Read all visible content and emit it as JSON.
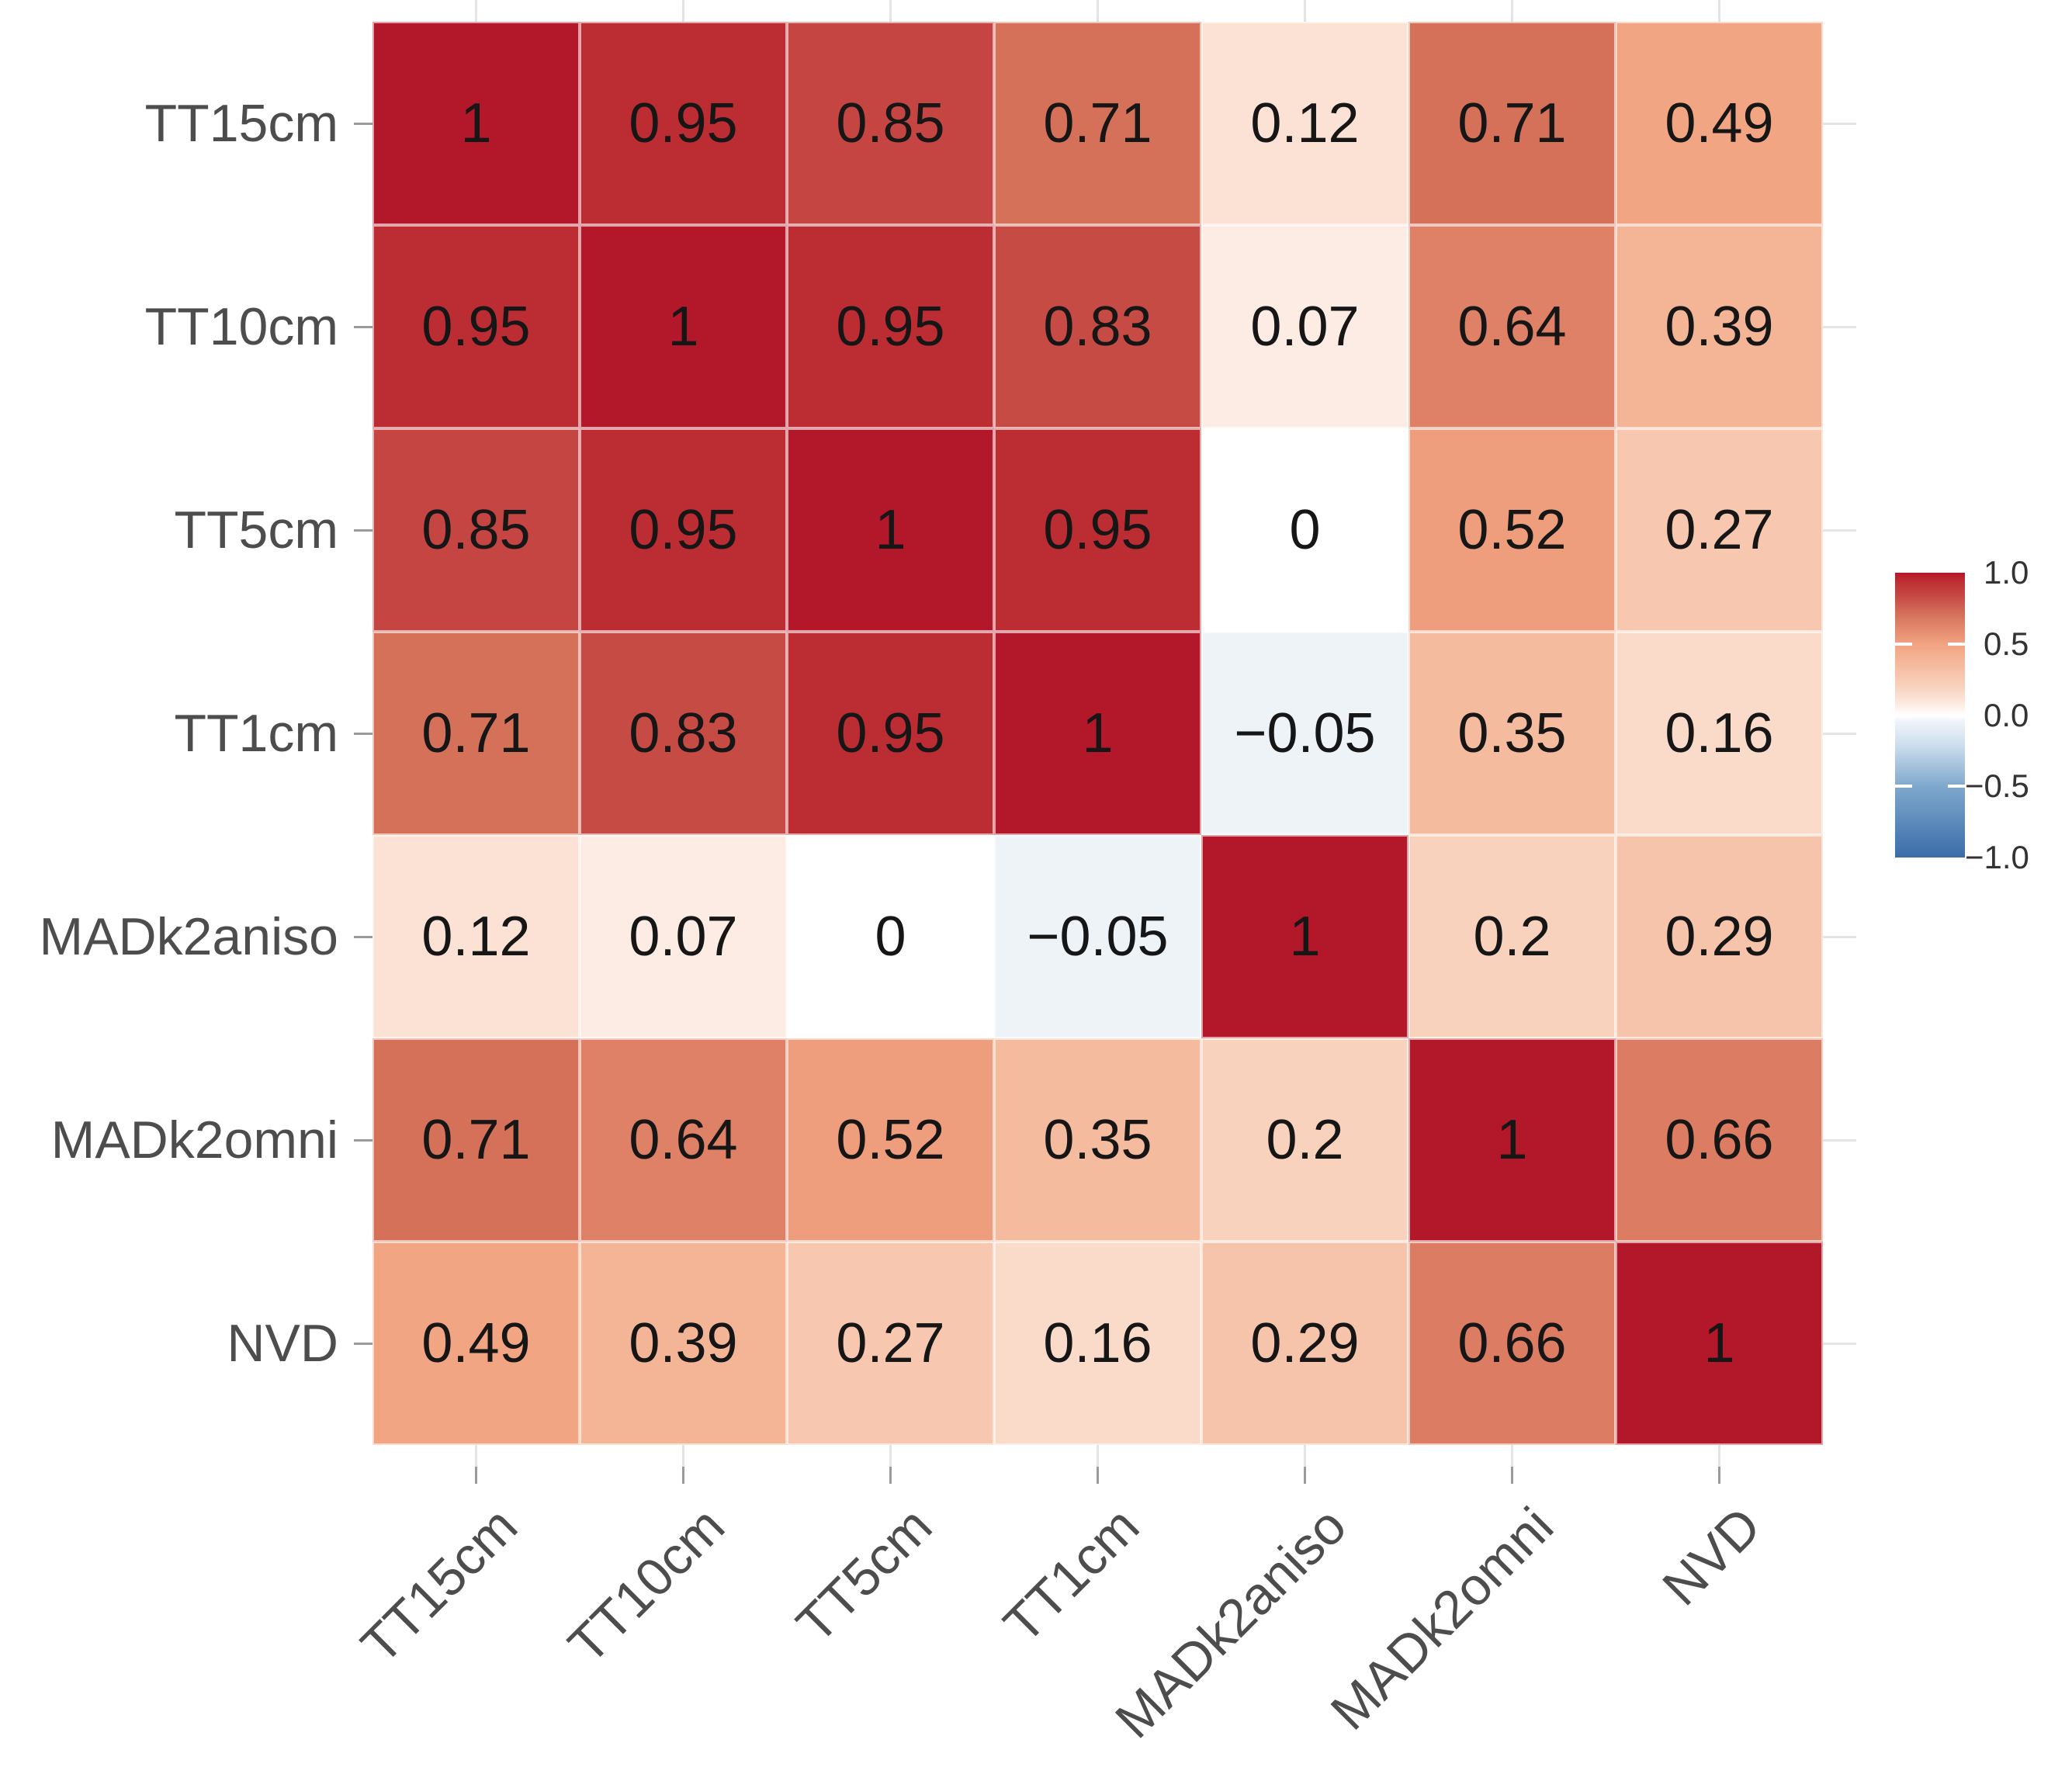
{
  "figure": {
    "background": "#ffffff"
  },
  "chart_data": {
    "type": "heatmap",
    "title": "",
    "x_categories": [
      "TT15cm",
      "TT10cm",
      "TT5cm",
      "TT1cm",
      "MADk2aniso",
      "MADk2omni",
      "NVD"
    ],
    "y_categories": [
      "TT15cm",
      "TT10cm",
      "TT5cm",
      "TT1cm",
      "MADk2aniso",
      "MADk2omni",
      "NVD"
    ],
    "matrix": [
      [
        1,
        0.95,
        0.85,
        0.71,
        0.12,
        0.71,
        0.49
      ],
      [
        0.95,
        1,
        0.95,
        0.83,
        0.07,
        0.64,
        0.39
      ],
      [
        0.85,
        0.95,
        1,
        0.95,
        0,
        0.52,
        0.27
      ],
      [
        0.71,
        0.83,
        0.95,
        1,
        -0.05,
        0.35,
        0.16
      ],
      [
        0.12,
        0.07,
        0,
        -0.05,
        1,
        0.2,
        0.29
      ],
      [
        0.71,
        0.64,
        0.52,
        0.35,
        0.2,
        1,
        0.66
      ],
      [
        0.49,
        0.39,
        0.27,
        0.16,
        0.29,
        0.66,
        1
      ]
    ],
    "cell_labels": [
      [
        "1",
        "0.95",
        "0.85",
        "0.71",
        "0.12",
        "0.71",
        "0.49"
      ],
      [
        "0.95",
        "1",
        "0.95",
        "0.83",
        "0.07",
        "0.64",
        "0.39"
      ],
      [
        "0.85",
        "0.95",
        "1",
        "0.95",
        "0",
        "0.52",
        "0.27"
      ],
      [
        "0.71",
        "0.83",
        "0.95",
        "1",
        "−0.05",
        "0.35",
        "0.16"
      ],
      [
        "0.12",
        "0.07",
        "0",
        "−0.05",
        "1",
        "0.2",
        "0.29"
      ],
      [
        "0.71",
        "0.64",
        "0.52",
        "0.35",
        "0.2",
        "1",
        "0.66"
      ],
      [
        "0.49",
        "0.39",
        "0.27",
        "0.16",
        "0.29",
        "0.66",
        "1"
      ]
    ],
    "value_range": [
      -1,
      1
    ],
    "grid": true,
    "legend": {
      "position": "right",
      "tick_labels": [
        "1.0",
        "0.5",
        "0.0",
        "−0.5",
        "−1.0"
      ],
      "tick_values": [
        1,
        0.5,
        0,
        -0.5,
        -1
      ]
    },
    "colormap_stops": [
      {
        "v": -1.0,
        "c": "#3a6ca8"
      },
      {
        "v": -0.5,
        "c": "#7fa8cd"
      },
      {
        "v": -0.2,
        "c": "#cfe0ee"
      },
      {
        "v": -0.05,
        "c": "#eef3f8"
      },
      {
        "v": 0.0,
        "c": "#ffffff"
      },
      {
        "v": 0.07,
        "c": "#fdece4"
      },
      {
        "v": 0.2,
        "c": "#f8d2bd"
      },
      {
        "v": 0.49,
        "c": "#f2a583"
      },
      {
        "v": 0.71,
        "c": "#d57059"
      },
      {
        "v": 0.85,
        "c": "#c54542"
      },
      {
        "v": 0.95,
        "c": "#bc2c33"
      },
      {
        "v": 1.0,
        "c": "#b3172a"
      }
    ]
  },
  "colors": {
    "axis_text": "#4d4d4d",
    "cell_text": "#161616",
    "tick_mark": "#9b9b9b",
    "gridline": "#e4e4e4",
    "legend_text": "#333333"
  }
}
